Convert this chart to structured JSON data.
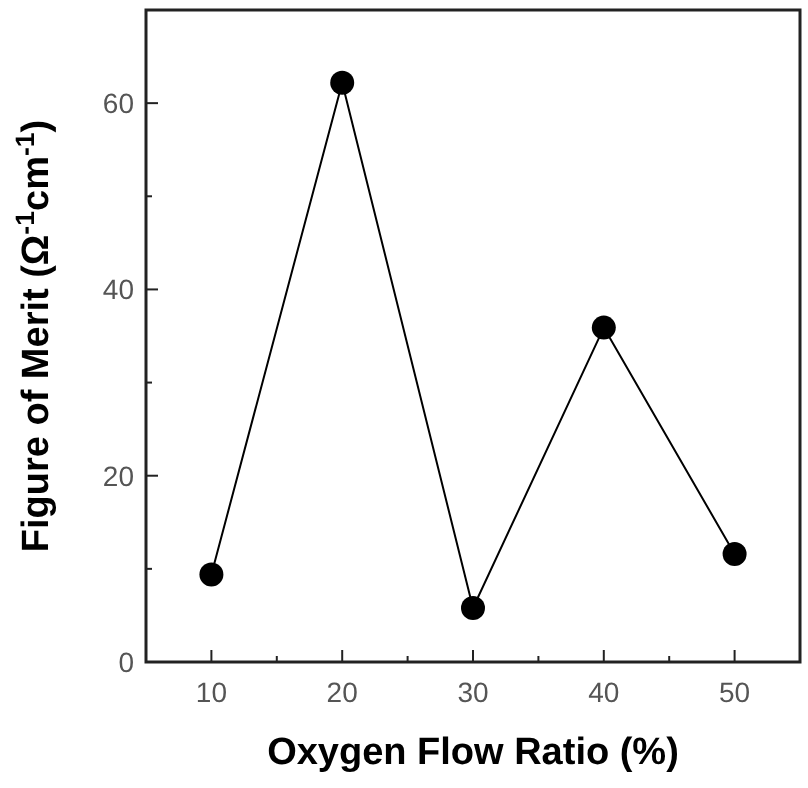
{
  "chart_data": {
    "type": "line",
    "xlabel": "Oxygen Flow Ratio (%)",
    "ylabel": "Figure of Merit (Ω$^{-1}$cm$^{-1}$)",
    "x": [
      10,
      20,
      30,
      40,
      50
    ],
    "series": [
      {
        "color": "#000000",
        "values": [
          9.4,
          62.2,
          5.8,
          35.9,
          11.6
        ]
      }
    ],
    "marker": "circle",
    "line_style": "solid",
    "grid": false,
    "xlim": [
      5,
      55
    ],
    "xticks": [
      10,
      {
        "value": 15,
        "label": null
      },
      20,
      {
        "value": 25,
        "label": null
      },
      30,
      {
        "value": 35,
        "label": null
      },
      40,
      {
        "value": 45,
        "label": null
      },
      50
    ],
    "ylim": [
      0,
      70
    ],
    "yticks": [
      0,
      {
        "value": 10,
        "label": null
      },
      20,
      {
        "value": 30,
        "label": null
      },
      40,
      {
        "value": 50,
        "label": null
      },
      60
    ]
  }
}
